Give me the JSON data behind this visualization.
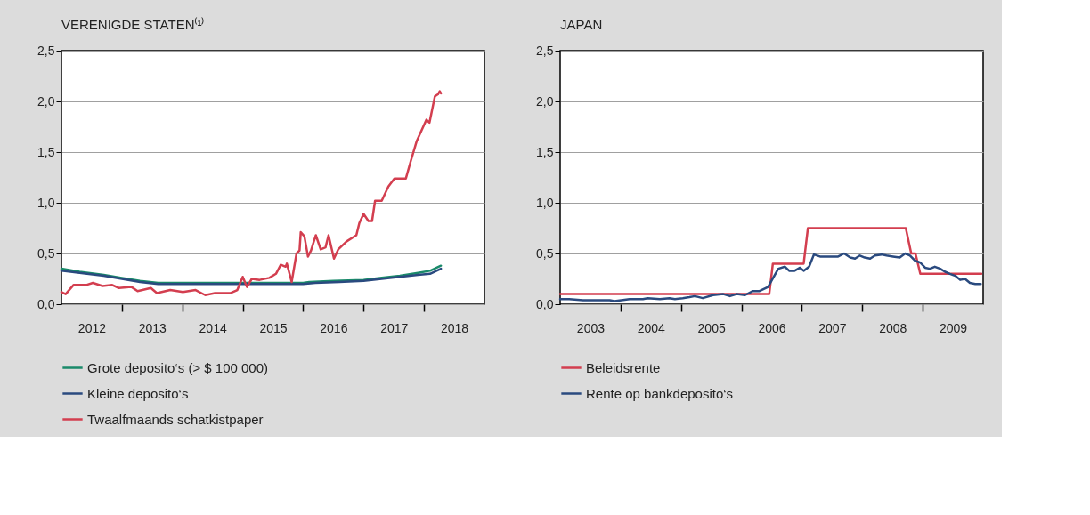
{
  "chart_data": [
    {
      "type": "line",
      "title": "VERENIGDE STATEN⁽¹⁾",
      "xlim": [
        2012,
        2019
      ],
      "xticks": [
        {
          "value": 2013,
          "label": null
        },
        {
          "value": 2014,
          "label": null
        },
        {
          "value": 2015,
          "label": null
        },
        {
          "value": 2016,
          "label": null
        },
        {
          "value": 2017,
          "label": null
        },
        {
          "value": 2018,
          "label": null
        },
        {
          "value": 2012.5,
          "label": "2012"
        },
        {
          "value": 2013.5,
          "label": "2013"
        },
        {
          "value": 2014.5,
          "label": "2014"
        },
        {
          "value": 2015.5,
          "label": "2015"
        },
        {
          "value": 2016.5,
          "label": "2016"
        },
        {
          "value": 2017.5,
          "label": "2017"
        },
        {
          "value": 2018.5,
          "label": "2018"
        }
      ],
      "ylim": [
        0,
        2.5
      ],
      "yticks": [
        {
          "value": 0,
          "label": "0,0"
        },
        {
          "value": 0.5,
          "label": "0,5"
        },
        {
          "value": 1,
          "label": "1,0"
        },
        {
          "value": 1.5,
          "label": "1,5"
        },
        {
          "value": 2,
          "label": "2,0"
        },
        {
          "value": 2.5,
          "label": "2,5"
        }
      ],
      "grid": "y",
      "legend": "bottom",
      "series": [
        {
          "name": "Grote deposito‘s (> $ 100 000)",
          "color": "#1a8a6a",
          "x": [
            2012.0,
            2012.3,
            2012.7,
            2013.0,
            2013.3,
            2013.6,
            2014.0,
            2014.5,
            2015.0,
            2015.5,
            2016.0,
            2016.1,
            2016.5,
            2017.0,
            2017.3,
            2017.6,
            2017.9,
            2018.1,
            2018.28
          ],
          "values": [
            0.35,
            0.32,
            0.29,
            0.26,
            0.23,
            0.21,
            0.21,
            0.21,
            0.21,
            0.21,
            0.21,
            0.22,
            0.23,
            0.24,
            0.26,
            0.28,
            0.31,
            0.33,
            0.38
          ]
        },
        {
          "name": "Kleine deposito‘s",
          "color": "#2a4a7f",
          "x": [
            2012.0,
            2012.3,
            2012.7,
            2013.0,
            2013.3,
            2013.6,
            2014.0,
            2014.5,
            2015.0,
            2015.5,
            2016.0,
            2016.2,
            2016.6,
            2017.0,
            2017.3,
            2017.6,
            2017.9,
            2018.1,
            2018.28
          ],
          "values": [
            0.33,
            0.31,
            0.28,
            0.25,
            0.22,
            0.2,
            0.2,
            0.2,
            0.2,
            0.2,
            0.2,
            0.21,
            0.22,
            0.23,
            0.25,
            0.27,
            0.29,
            0.3,
            0.35
          ]
        },
        {
          "name": "Twaalfmaands schatkistpaper",
          "color": "#d33e4f",
          "x": [
            2012.0,
            2012.07,
            2012.2,
            2012.41,
            2012.52,
            2012.68,
            2012.84,
            2012.95,
            2013.16,
            2013.26,
            2013.48,
            2013.58,
            2013.8,
            2014.01,
            2014.22,
            2014.38,
            2014.54,
            2014.8,
            2014.91,
            2015.0,
            2015.07,
            2015.15,
            2015.28,
            2015.44,
            2015.55,
            2015.63,
            2015.71,
            2015.73,
            2015.81,
            2015.89,
            2015.94,
            2015.96,
            2016.02,
            2016.08,
            2016.13,
            2016.21,
            2016.29,
            2016.37,
            2016.42,
            2016.51,
            2016.58,
            2016.72,
            2016.88,
            2016.93,
            2017.0,
            2017.08,
            2017.14,
            2017.19,
            2017.3,
            2017.41,
            2017.51,
            2017.7,
            2017.78,
            2017.88,
            2018.04,
            2018.09,
            2018.18,
            2018.23,
            2018.26,
            2018.28
          ],
          "values": [
            0.12,
            0.1,
            0.19,
            0.19,
            0.21,
            0.18,
            0.19,
            0.16,
            0.17,
            0.13,
            0.16,
            0.11,
            0.14,
            0.12,
            0.14,
            0.09,
            0.11,
            0.11,
            0.14,
            0.27,
            0.17,
            0.25,
            0.24,
            0.26,
            0.3,
            0.39,
            0.37,
            0.4,
            0.22,
            0.5,
            0.53,
            0.71,
            0.67,
            0.47,
            0.53,
            0.68,
            0.54,
            0.56,
            0.68,
            0.45,
            0.54,
            0.62,
            0.68,
            0.8,
            0.89,
            0.82,
            0.82,
            1.02,
            1.02,
            1.16,
            1.24,
            1.24,
            1.41,
            1.61,
            1.82,
            1.79,
            2.05,
            2.07,
            2.1,
            2.08
          ]
        }
      ]
    },
    {
      "type": "line",
      "title": "JAPAN",
      "xlim": [
        2003,
        2010
      ],
      "xticks": [
        {
          "value": 2004,
          "label": null
        },
        {
          "value": 2005,
          "label": null
        },
        {
          "value": 2006,
          "label": null
        },
        {
          "value": 2007,
          "label": null
        },
        {
          "value": 2008,
          "label": null
        },
        {
          "value": 2009,
          "label": null
        },
        {
          "value": 2003.5,
          "label": "2003"
        },
        {
          "value": 2004.5,
          "label": "2004"
        },
        {
          "value": 2005.5,
          "label": "2005"
        },
        {
          "value": 2006.5,
          "label": "2006"
        },
        {
          "value": 2007.5,
          "label": "2007"
        },
        {
          "value": 2008.5,
          "label": "2008"
        },
        {
          "value": 2009.5,
          "label": "2009"
        }
      ],
      "ylim": [
        0,
        2.5
      ],
      "yticks": [
        {
          "value": 0,
          "label": "0,0"
        },
        {
          "value": 0.5,
          "label": "0,5"
        },
        {
          "value": 1,
          "label": "1,0"
        },
        {
          "value": 1.5,
          "label": "1,5"
        },
        {
          "value": 2,
          "label": "2,0"
        },
        {
          "value": 2.5,
          "label": "2,5"
        }
      ],
      "grid": "y",
      "legend": "bottom",
      "series": [
        {
          "name": "Beleidsrente",
          "color": "#d33e4f",
          "x": [
            2003.0,
            2006.46,
            2006.52,
            2007.03,
            2007.1,
            2008.72,
            2008.81,
            2008.88,
            2008.96,
            2009.97
          ],
          "values": [
            0.1,
            0.1,
            0.4,
            0.4,
            0.75,
            0.75,
            0.5,
            0.5,
            0.3,
            0.3
          ]
        },
        {
          "name": "Rente op bankdeposito‘s",
          "color": "#2a4a7f",
          "x": [
            2003.0,
            2003.15,
            2003.38,
            2003.6,
            2003.82,
            2003.9,
            2004.15,
            2004.37,
            2004.45,
            2004.65,
            2004.81,
            2004.9,
            2005.03,
            2005.14,
            2005.23,
            2005.36,
            2005.53,
            2005.7,
            2005.81,
            2005.92,
            2006.06,
            2006.19,
            2006.3,
            2006.44,
            2006.61,
            2006.72,
            2006.79,
            2006.88,
            2006.97,
            2007.03,
            2007.12,
            2007.2,
            2007.3,
            2007.46,
            2007.6,
            2007.7,
            2007.8,
            2007.88,
            2007.96,
            2008.04,
            2008.13,
            2008.21,
            2008.32,
            2008.4,
            2008.51,
            2008.62,
            2008.71,
            2008.79,
            2008.87,
            2008.96,
            2009.04,
            2009.12,
            2009.2,
            2009.29,
            2009.37,
            2009.45,
            2009.54,
            2009.62,
            2009.7,
            2009.78,
            2009.87,
            2009.96
          ],
          "values": [
            0.05,
            0.05,
            0.04,
            0.04,
            0.04,
            0.03,
            0.05,
            0.05,
            0.06,
            0.05,
            0.06,
            0.05,
            0.06,
            0.07,
            0.08,
            0.06,
            0.09,
            0.1,
            0.08,
            0.1,
            0.09,
            0.13,
            0.13,
            0.17,
            0.35,
            0.37,
            0.33,
            0.33,
            0.36,
            0.33,
            0.37,
            0.49,
            0.47,
            0.47,
            0.47,
            0.5,
            0.46,
            0.45,
            0.48,
            0.46,
            0.45,
            0.48,
            0.49,
            0.48,
            0.47,
            0.46,
            0.5,
            0.48,
            0.43,
            0.41,
            0.36,
            0.35,
            0.37,
            0.35,
            0.32,
            0.3,
            0.28,
            0.24,
            0.25,
            0.21,
            0.2,
            0.2
          ]
        }
      ]
    }
  ]
}
